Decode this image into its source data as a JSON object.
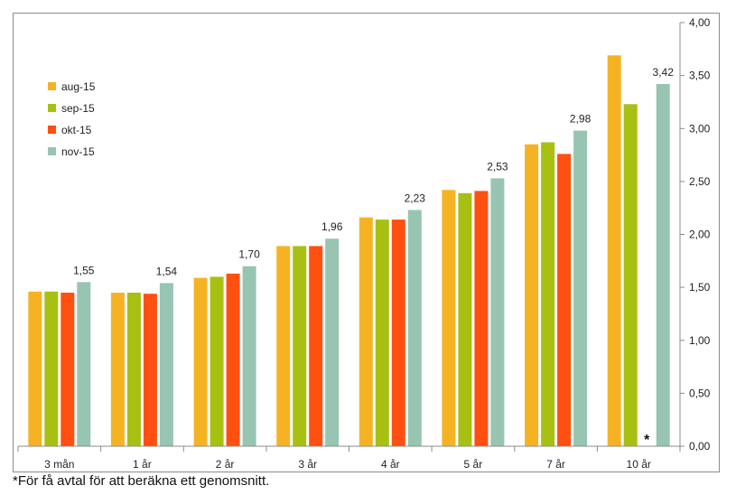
{
  "chart_data": {
    "type": "bar",
    "categories": [
      "3 mån",
      "1 år",
      "2 år",
      "3 år",
      "4 år",
      "5 år",
      "7 år",
      "10 år"
    ],
    "series": [
      {
        "name": "aug-15",
        "color": "#F5B324",
        "values": [
          1.46,
          1.45,
          1.59,
          1.89,
          2.16,
          2.42,
          2.85,
          3.69
        ]
      },
      {
        "name": "sep-15",
        "color": "#A8C012",
        "values": [
          1.46,
          1.45,
          1.6,
          1.89,
          2.14,
          2.39,
          2.87,
          3.23
        ]
      },
      {
        "name": "okt-15",
        "color": "#FF4F11",
        "values": [
          1.45,
          1.44,
          1.63,
          1.89,
          2.14,
          2.41,
          2.76,
          null
        ]
      },
      {
        "name": "nov-15",
        "color": "#97C5B2",
        "values": [
          1.55,
          1.54,
          1.7,
          1.96,
          2.23,
          2.53,
          2.98,
          3.42
        ]
      }
    ],
    "data_labels": {
      "series": "nov-15",
      "texts": [
        "1,55",
        "1,54",
        "1,70",
        "1,96",
        "2,23",
        "2,53",
        "2,98",
        "3,42"
      ]
    },
    "ylim": [
      0,
      4
    ],
    "y_ticks": [
      0,
      0.5,
      1,
      1.5,
      2,
      2.5,
      3,
      3.5,
      4
    ],
    "y_tick_labels": [
      "0,00",
      "0,50",
      "1,00",
      "1,50",
      "2,00",
      "2,50",
      "3,00",
      "3,50",
      "4,00"
    ],
    "y_axis_side": "right",
    "grid": false,
    "legend_placement": "top-left",
    "title": "",
    "xlabel": "",
    "ylabel": "",
    "missing_value_marker": {
      "category": "10 år",
      "series": "okt-15",
      "text": "*"
    }
  },
  "footnote": "*För få avtal för att beräkna ett genomsnitt."
}
